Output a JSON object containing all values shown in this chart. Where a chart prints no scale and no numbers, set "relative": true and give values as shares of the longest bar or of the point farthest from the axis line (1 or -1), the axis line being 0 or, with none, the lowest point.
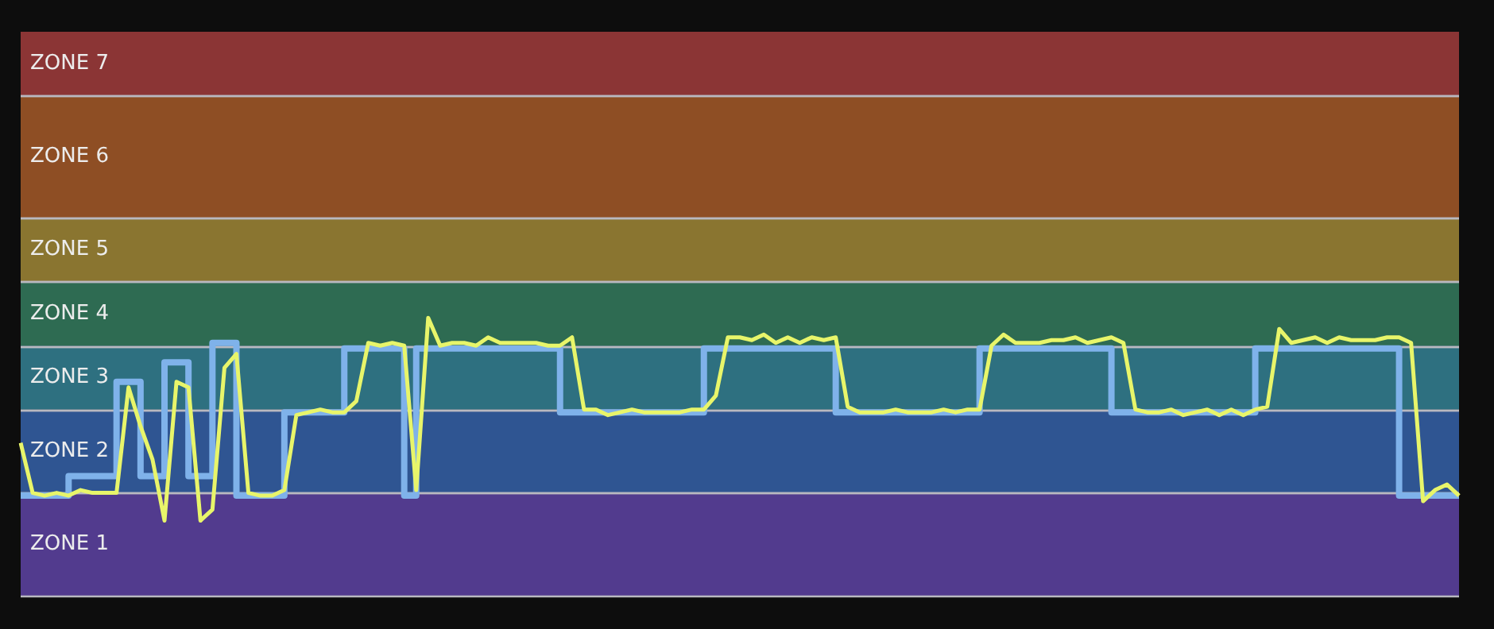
{
  "chart_data": {
    "type": "line",
    "relative": true,
    "categories": [
      null,
      null,
      null,
      null,
      null,
      null,
      null,
      null,
      null,
      null,
      null,
      null,
      null,
      null,
      null,
      null,
      null,
      null,
      null,
      null,
      null,
      null,
      null,
      null,
      null,
      null,
      null,
      null,
      null,
      null,
      null,
      null,
      null,
      null,
      null,
      null,
      null,
      null,
      null,
      null,
      null,
      null,
      null,
      null,
      null,
      null,
      null,
      null,
      null,
      null,
      null,
      null,
      null,
      null,
      null,
      null,
      null,
      null,
      null,
      null,
      null,
      null,
      null,
      null,
      null,
      null,
      null,
      null,
      null,
      null,
      null,
      null,
      null,
      null,
      null,
      null,
      null,
      null,
      null,
      null,
      null,
      null,
      null,
      null,
      null,
      null,
      null,
      null,
      null,
      null,
      null,
      null,
      null,
      null,
      null,
      null,
      null,
      null,
      null,
      null,
      null,
      null,
      null,
      null,
      null,
      null,
      null,
      null,
      null,
      null,
      null,
      null,
      null,
      null,
      null,
      null,
      null,
      null,
      null,
      null,
      null
    ],
    "series": [
      {
        "type": "step",
        "color": "#7fb2ea",
        "values": [
          0.36,
          0.36,
          0.36,
          0.36,
          0.36,
          0.43,
          0.43,
          0.43,
          0.43,
          0.77,
          0.77,
          0.43,
          0.43,
          0.84,
          0.84,
          0.43,
          0.43,
          0.91,
          0.91,
          0.36,
          0.36,
          0.36,
          0.36,
          0.66,
          0.66,
          0.66,
          0.66,
          0.66,
          0.89,
          0.89,
          0.89,
          0.89,
          0.89,
          0.36,
          0.89,
          0.89,
          0.89,
          0.89,
          0.89,
          0.89,
          0.89,
          0.89,
          0.89,
          0.89,
          0.89,
          0.89,
          0.66,
          0.66,
          0.66,
          0.66,
          0.66,
          0.66,
          0.66,
          0.66,
          0.66,
          0.66,
          0.66,
          0.66,
          0.89,
          0.89,
          0.89,
          0.89,
          0.89,
          0.89,
          0.89,
          0.89,
          0.89,
          0.89,
          0.89,
          0.66,
          0.66,
          0.66,
          0.66,
          0.66,
          0.66,
          0.66,
          0.66,
          0.66,
          0.66,
          0.66,
          0.66,
          0.89,
          0.89,
          0.89,
          0.89,
          0.89,
          0.89,
          0.89,
          0.89,
          0.89,
          0.89,
          0.89,
          0.66,
          0.66,
          0.66,
          0.66,
          0.66,
          0.66,
          0.66,
          0.66,
          0.66,
          0.66,
          0.66,
          0.66,
          0.89,
          0.89,
          0.89,
          0.89,
          0.89,
          0.89,
          0.89,
          0.89,
          0.89,
          0.89,
          0.89,
          0.89,
          0.36,
          0.36,
          0.36,
          0.36,
          0.36
        ]
      },
      {
        "type": "line",
        "color": "#e8f56a",
        "values": [
          0.55,
          0.37,
          0.36,
          0.37,
          0.36,
          0.38,
          0.37,
          0.37,
          0.37,
          0.75,
          0.61,
          0.49,
          0.27,
          0.77,
          0.75,
          0.27,
          0.31,
          0.82,
          0.87,
          0.37,
          0.36,
          0.36,
          0.38,
          0.65,
          0.66,
          0.67,
          0.66,
          0.66,
          0.7,
          0.91,
          0.9,
          0.91,
          0.9,
          0.38,
          1,
          0.9,
          0.91,
          0.91,
          0.9,
          0.93,
          0.91,
          0.91,
          0.91,
          0.91,
          0.9,
          0.9,
          0.93,
          0.67,
          0.67,
          0.65,
          0.66,
          0.67,
          0.66,
          0.66,
          0.66,
          0.66,
          0.67,
          0.67,
          0.72,
          0.93,
          0.93,
          0.92,
          0.94,
          0.91,
          0.93,
          0.91,
          0.93,
          0.92,
          0.93,
          0.68,
          0.66,
          0.66,
          0.66,
          0.67,
          0.66,
          0.66,
          0.66,
          0.67,
          0.66,
          0.67,
          0.67,
          0.9,
          0.94,
          0.91,
          0.91,
          0.91,
          0.92,
          0.92,
          0.93,
          0.91,
          0.92,
          0.93,
          0.91,
          0.67,
          0.66,
          0.66,
          0.67,
          0.65,
          0.66,
          0.67,
          0.65,
          0.67,
          0.65,
          0.67,
          0.68,
          0.96,
          0.91,
          0.92,
          0.93,
          0.91,
          0.93,
          0.92,
          0.92,
          0.92,
          0.93,
          0.93,
          0.91,
          0.34,
          0.38,
          0.4,
          0.36
        ]
      }
    ],
    "bands": [
      {
        "axis": "y",
        "from": 0,
        "to": 0.37,
        "label": "ZONE 1",
        "color": "#523b8e"
      },
      {
        "axis": "y",
        "from": 0.37,
        "to": 0.67,
        "label": "ZONE 2",
        "color": "#2f5592"
      },
      {
        "axis": "y",
        "from": 0.67,
        "to": 0.9,
        "label": "ZONE 3",
        "color": "#2e7080"
      },
      {
        "axis": "y",
        "from": 0.9,
        "to": 1.13,
        "label": "ZONE 4",
        "color": "#2e6b52"
      },
      {
        "axis": "y",
        "from": 1.13,
        "to": 1.36,
        "label": "ZONE 5",
        "color": "#8a7530"
      },
      {
        "axis": "y",
        "from": 1.36,
        "to": 1.8,
        "label": "ZONE 6",
        "color": "#8e4e24"
      },
      {
        "axis": "y",
        "from": 1.8,
        "to": 2.03,
        "label": "ZONE 7",
        "color": "#8b3535"
      }
    ]
  }
}
